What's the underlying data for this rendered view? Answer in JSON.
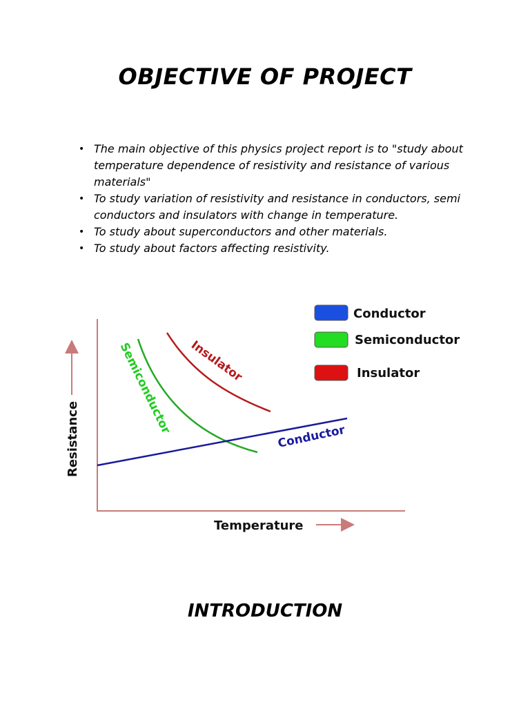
{
  "title": "OBJECTIVE OF PROJECT",
  "bullets": [
    "The main objective of this physics project report is to \"study about temperature dependence of resistivity and resistance of various materials\"",
    "To study variation of resistivity and resistance in conductors, semi conductors and insulators with change in temperature.",
    "To study about superconductors and other materials.",
    "To study about factors affecting resistivity."
  ],
  "figure": {
    "legend": [
      {
        "label": "Conductor",
        "color": "#1a4fe0"
      },
      {
        "label": "Semiconductor",
        "color": "#22dd22"
      },
      {
        "label": "Insulator",
        "color": "#dd1111"
      }
    ],
    "curve_labels": {
      "insulator": "Insulator",
      "semiconductor": "Semiconductor",
      "conductor": "Conductor"
    },
    "curve_colors": {
      "insulator": "#b51a1a",
      "semiconductor": "#22aa22",
      "conductor": "#1a1a99",
      "semiconductor_label": "#22cc22",
      "conductor_label": "#1a1aa0",
      "axis": "#c97a7a"
    },
    "xlabel": "Temperature",
    "ylabel": "Resistance"
  },
  "section_title": "INTRODUCTION"
}
